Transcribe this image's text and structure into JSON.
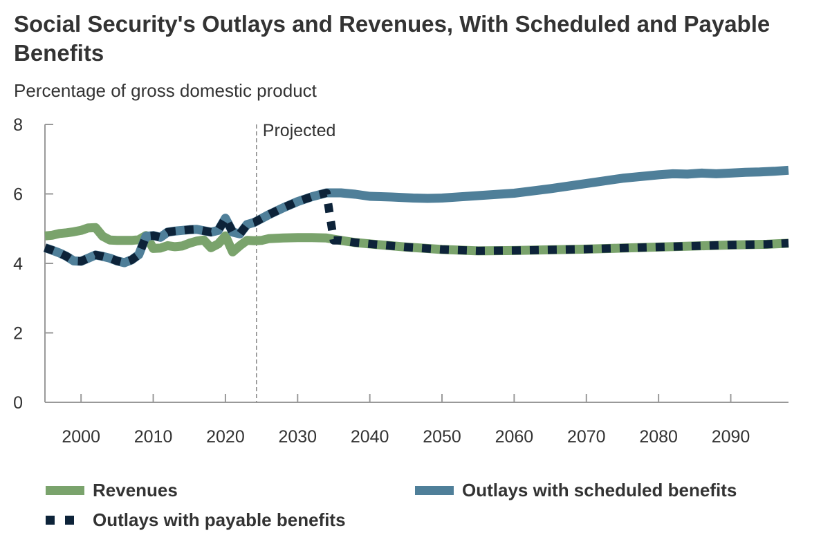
{
  "title": "Social Security's Outlays and Revenues, With Scheduled and Payable Benefits",
  "subtitle": "Percentage of gross domestic product",
  "colors": {
    "revenues": "#7aa36c",
    "scheduled": "#4f7f99",
    "payable": "#0d2339",
    "axis": "#999999",
    "text": "#333333"
  },
  "chart_data": {
    "type": "line",
    "ylabel": "Percentage of gross domestic product",
    "xlabel": "",
    "xlim": [
      1995,
      2098
    ],
    "ylim": [
      0,
      8
    ],
    "x_ticks": [
      2000,
      2010,
      2020,
      2030,
      2040,
      2050,
      2060,
      2070,
      2080,
      2090
    ],
    "y_ticks": [
      0,
      2,
      4,
      6,
      8
    ],
    "grid": false,
    "legend": "bottom",
    "annotation": {
      "label": "Projected",
      "x": 2024.3
    },
    "series": [
      {
        "name": "Revenues",
        "key": "revenues",
        "style": "solid",
        "points": [
          [
            1995,
            4.79
          ],
          [
            1996,
            4.81
          ],
          [
            1997,
            4.86
          ],
          [
            1998,
            4.88
          ],
          [
            1999,
            4.91
          ],
          [
            2000,
            4.95
          ],
          [
            2001,
            5.02
          ],
          [
            2002,
            5.03
          ],
          [
            2003,
            4.78
          ],
          [
            2004,
            4.67
          ],
          [
            2005,
            4.66
          ],
          [
            2006,
            4.66
          ],
          [
            2007,
            4.66
          ],
          [
            2008,
            4.68
          ],
          [
            2009,
            4.8
          ],
          [
            2010,
            4.43
          ],
          [
            2011,
            4.44
          ],
          [
            2012,
            4.51
          ],
          [
            2013,
            4.48
          ],
          [
            2014,
            4.5
          ],
          [
            2015,
            4.58
          ],
          [
            2016,
            4.64
          ],
          [
            2017,
            4.67
          ],
          [
            2018,
            4.45
          ],
          [
            2019,
            4.56
          ],
          [
            2020,
            4.79
          ],
          [
            2021,
            4.33
          ],
          [
            2022,
            4.51
          ],
          [
            2023,
            4.66
          ],
          [
            2024,
            4.65
          ],
          [
            2025,
            4.66
          ],
          [
            2026,
            4.71
          ],
          [
            2028,
            4.73
          ],
          [
            2030,
            4.74
          ],
          [
            2032,
            4.74
          ],
          [
            2034,
            4.73
          ],
          [
            2036,
            4.66
          ],
          [
            2038,
            4.6
          ],
          [
            2040,
            4.56
          ],
          [
            2045,
            4.47
          ],
          [
            2050,
            4.4
          ],
          [
            2055,
            4.36
          ],
          [
            2060,
            4.37
          ],
          [
            2065,
            4.39
          ],
          [
            2070,
            4.41
          ],
          [
            2075,
            4.44
          ],
          [
            2080,
            4.47
          ],
          [
            2085,
            4.5
          ],
          [
            2090,
            4.53
          ],
          [
            2095,
            4.55
          ],
          [
            2098,
            4.58
          ]
        ]
      },
      {
        "name": "Outlays with scheduled benefits",
        "key": "scheduled",
        "style": "solid",
        "points": [
          [
            1995,
            4.45
          ],
          [
            1996,
            4.38
          ],
          [
            1997,
            4.3
          ],
          [
            1998,
            4.2
          ],
          [
            1999,
            4.07
          ],
          [
            2000,
            4.06
          ],
          [
            2001,
            4.15
          ],
          [
            2002,
            4.24
          ],
          [
            2003,
            4.2
          ],
          [
            2004,
            4.15
          ],
          [
            2005,
            4.07
          ],
          [
            2006,
            4.02
          ],
          [
            2007,
            4.1
          ],
          [
            2008,
            4.25
          ],
          [
            2009,
            4.78
          ],
          [
            2010,
            4.8
          ],
          [
            2011,
            4.75
          ],
          [
            2012,
            4.9
          ],
          [
            2013,
            4.93
          ],
          [
            2014,
            4.95
          ],
          [
            2015,
            4.97
          ],
          [
            2016,
            4.98
          ],
          [
            2017,
            4.94
          ],
          [
            2018,
            4.9
          ],
          [
            2019,
            4.95
          ],
          [
            2020,
            5.3
          ],
          [
            2021,
            4.9
          ],
          [
            2022,
            4.85
          ],
          [
            2023,
            5.12
          ],
          [
            2024,
            5.18
          ],
          [
            2026,
            5.4
          ],
          [
            2028,
            5.6
          ],
          [
            2030,
            5.78
          ],
          [
            2032,
            5.92
          ],
          [
            2034,
            6.03
          ],
          [
            2036,
            6.03
          ],
          [
            2038,
            5.99
          ],
          [
            2040,
            5.93
          ],
          [
            2043,
            5.91
          ],
          [
            2046,
            5.88
          ],
          [
            2048,
            5.87
          ],
          [
            2050,
            5.88
          ],
          [
            2055,
            5.95
          ],
          [
            2060,
            6.02
          ],
          [
            2065,
            6.15
          ],
          [
            2070,
            6.3
          ],
          [
            2075,
            6.45
          ],
          [
            2080,
            6.55
          ],
          [
            2082,
            6.58
          ],
          [
            2084,
            6.57
          ],
          [
            2086,
            6.6
          ],
          [
            2088,
            6.58
          ],
          [
            2090,
            6.6
          ],
          [
            2092,
            6.62
          ],
          [
            2094,
            6.63
          ],
          [
            2096,
            6.65
          ],
          [
            2098,
            6.68
          ]
        ]
      },
      {
        "name": "Outlays with payable benefits",
        "key": "payable",
        "style": "dotted",
        "points": [
          [
            1995,
            4.45
          ],
          [
            1996,
            4.38
          ],
          [
            1997,
            4.3
          ],
          [
            1998,
            4.2
          ],
          [
            1999,
            4.07
          ],
          [
            2000,
            4.06
          ],
          [
            2001,
            4.15
          ],
          [
            2002,
            4.24
          ],
          [
            2003,
            4.2
          ],
          [
            2004,
            4.15
          ],
          [
            2005,
            4.07
          ],
          [
            2006,
            4.02
          ],
          [
            2007,
            4.1
          ],
          [
            2008,
            4.25
          ],
          [
            2009,
            4.78
          ],
          [
            2010,
            4.8
          ],
          [
            2011,
            4.75
          ],
          [
            2012,
            4.9
          ],
          [
            2013,
            4.93
          ],
          [
            2014,
            4.95
          ],
          [
            2015,
            4.97
          ],
          [
            2016,
            4.98
          ],
          [
            2017,
            4.94
          ],
          [
            2018,
            4.9
          ],
          [
            2019,
            4.95
          ],
          [
            2020,
            5.3
          ],
          [
            2021,
            4.9
          ],
          [
            2022,
            4.85
          ],
          [
            2023,
            5.12
          ],
          [
            2024,
            5.18
          ],
          [
            2026,
            5.4
          ],
          [
            2028,
            5.6
          ],
          [
            2030,
            5.78
          ],
          [
            2032,
            5.92
          ],
          [
            2034,
            6.03
          ],
          [
            2035,
            4.66
          ],
          [
            2036,
            4.66
          ],
          [
            2038,
            4.6
          ],
          [
            2040,
            4.56
          ],
          [
            2045,
            4.47
          ],
          [
            2050,
            4.4
          ],
          [
            2055,
            4.36
          ],
          [
            2060,
            4.37
          ],
          [
            2065,
            4.39
          ],
          [
            2070,
            4.41
          ],
          [
            2075,
            4.44
          ],
          [
            2080,
            4.47
          ],
          [
            2085,
            4.5
          ],
          [
            2090,
            4.53
          ],
          [
            2095,
            4.55
          ],
          [
            2098,
            4.58
          ]
        ]
      }
    ]
  },
  "legend": {
    "revenues": "Revenues",
    "scheduled": "Outlays with scheduled benefits",
    "payable": "Outlays with payable benefits"
  }
}
